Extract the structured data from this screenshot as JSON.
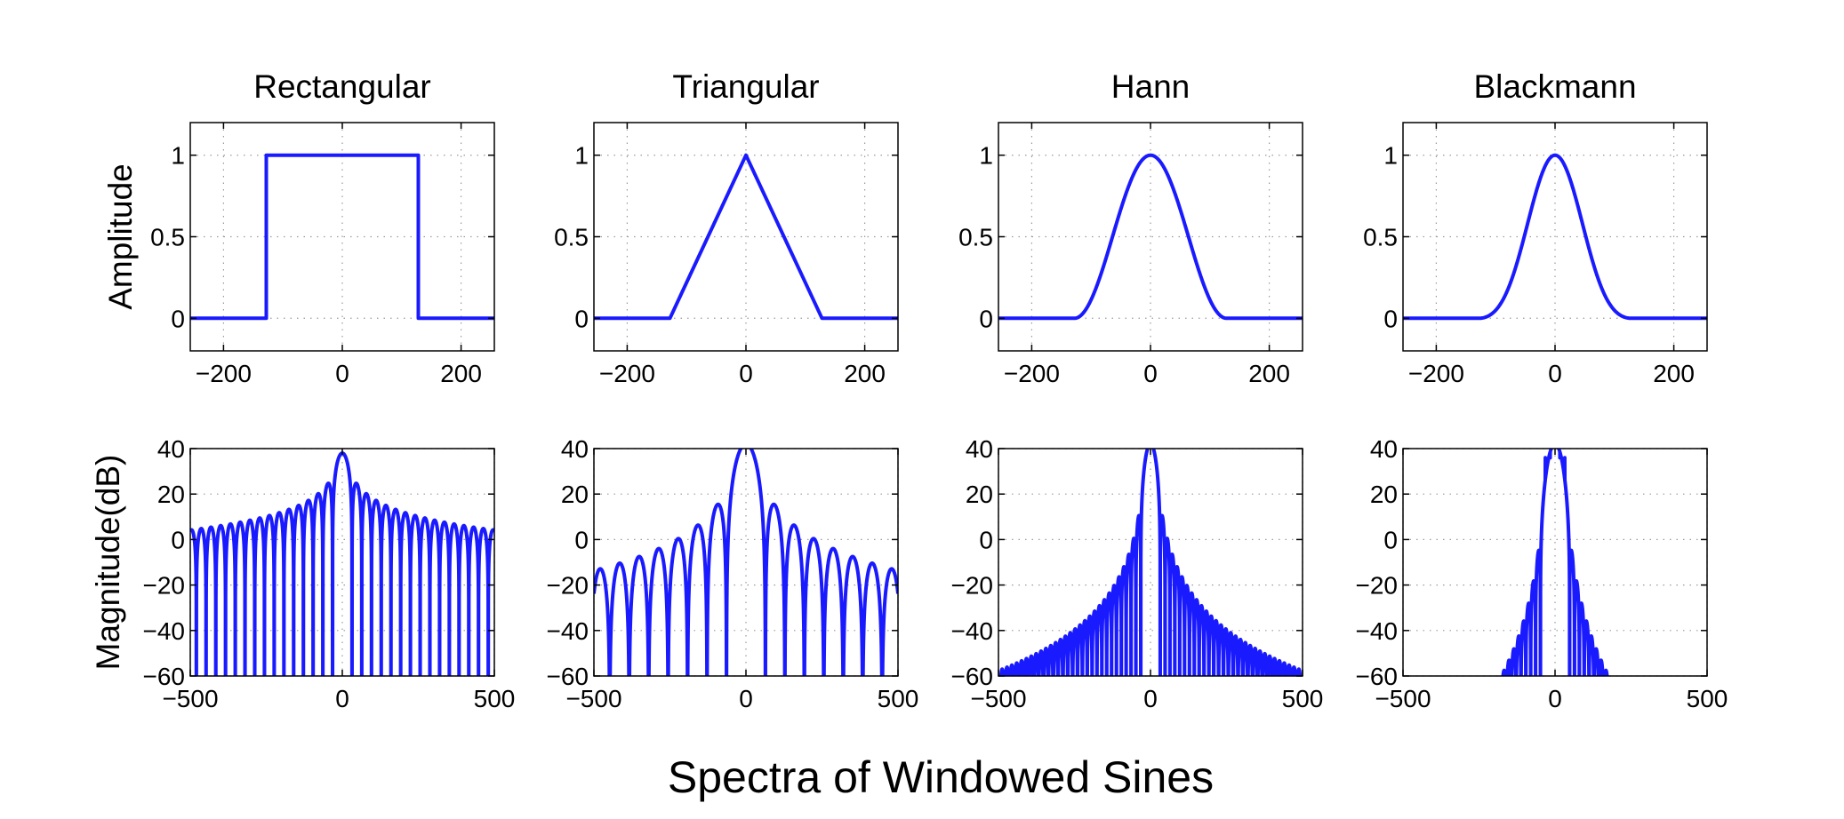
{
  "figure": {
    "caption": "Spectra of Windowed Sines",
    "line_color": "#1a1aff"
  },
  "chart_data": [
    {
      "type": "line",
      "id": "rect-time",
      "title": "Rectangular",
      "ylabel": "Amplitude",
      "xlabel": "",
      "xlim": [
        -256,
        256
      ],
      "ylim": [
        -0.2,
        1.2
      ],
      "xticks": [
        -200,
        0,
        200
      ],
      "xticklabels": [
        "−200",
        "0",
        "200"
      ],
      "yticks": [
        0,
        0.5,
        1
      ],
      "yticklabels": [
        "0",
        "0.5",
        "1"
      ],
      "grid": true,
      "window": "rectangular",
      "kind": "time",
      "half_width": 128
    },
    {
      "type": "line",
      "id": "tri-time",
      "title": "Triangular",
      "ylabel": "",
      "xlabel": "",
      "xlim": [
        -256,
        256
      ],
      "ylim": [
        -0.2,
        1.2
      ],
      "xticks": [
        -200,
        0,
        200
      ],
      "xticklabels": [
        "−200",
        "0",
        "200"
      ],
      "yticks": [
        0,
        0.5,
        1
      ],
      "yticklabels": [
        "0",
        "0.5",
        "1"
      ],
      "grid": true,
      "window": "triangular",
      "kind": "time",
      "half_width": 128
    },
    {
      "type": "line",
      "id": "hann-time",
      "title": "Hann",
      "ylabel": "",
      "xlabel": "",
      "xlim": [
        -256,
        256
      ],
      "ylim": [
        -0.2,
        1.2
      ],
      "xticks": [
        -200,
        0,
        200
      ],
      "xticklabels": [
        "−200",
        "0",
        "200"
      ],
      "yticks": [
        0,
        0.5,
        1
      ],
      "yticklabels": [
        "0",
        "0.5",
        "1"
      ],
      "grid": true,
      "window": "hann",
      "kind": "time",
      "half_width": 128
    },
    {
      "type": "line",
      "id": "black-time",
      "title": "Blackmann",
      "ylabel": "",
      "xlabel": "",
      "xlim": [
        -256,
        256
      ],
      "ylim": [
        -0.2,
        1.2
      ],
      "xticks": [
        -200,
        0,
        200
      ],
      "xticklabels": [
        "−200",
        "0",
        "200"
      ],
      "yticks": [
        0,
        0.5,
        1
      ],
      "yticklabels": [
        "0",
        "0.5",
        "1"
      ],
      "grid": true,
      "window": "blackman",
      "kind": "time",
      "half_width": 128
    },
    {
      "type": "line",
      "id": "rect-freq",
      "title": "",
      "ylabel": "Magnitude(dB)",
      "xlabel": "",
      "xlim": [
        -500,
        500
      ],
      "ylim": [
        -60,
        40
      ],
      "xticks": [
        -500,
        0,
        500
      ],
      "xticklabels": [
        "−500",
        "0",
        "500"
      ],
      "yticks": [
        -60,
        -40,
        -20,
        0,
        20,
        40
      ],
      "yticklabels": [
        "−60",
        "−40",
        "−20",
        "0",
        "20",
        "40"
      ],
      "grid": true,
      "window": "rectangular",
      "kind": "spectrum",
      "peak_db": 38,
      "null_spacing": 32
    },
    {
      "type": "line",
      "id": "tri-freq",
      "title": "",
      "ylabel": "",
      "xlabel": "",
      "xlim": [
        -500,
        500
      ],
      "ylim": [
        -60,
        40
      ],
      "xticks": [
        -500,
        0,
        500
      ],
      "xticklabels": [
        "−500",
        "0",
        "500"
      ],
      "yticks": [
        -60,
        -40,
        -20,
        0,
        20,
        40
      ],
      "yticklabels": [
        "−60",
        "−40",
        "−20",
        "0",
        "20",
        "40"
      ],
      "grid": true,
      "window": "triangular",
      "kind": "spectrum",
      "peak_db": 42,
      "null_spacing": 64
    },
    {
      "type": "line",
      "id": "hann-freq",
      "title": "",
      "ylabel": "",
      "xlabel": "",
      "xlim": [
        -500,
        500
      ],
      "ylim": [
        -60,
        40
      ],
      "xticks": [
        -500,
        0,
        500
      ],
      "xticklabels": [
        "−500",
        "0",
        "500"
      ],
      "yticks": [
        -60,
        -40,
        -20,
        0,
        20,
        40
      ],
      "yticklabels": [
        "−60",
        "−40",
        "−20",
        "0",
        "20",
        "40"
      ],
      "grid": true,
      "window": "hann",
      "kind": "spectrum",
      "peak_db": 42,
      "null_spacing": 16
    },
    {
      "type": "line",
      "id": "black-freq",
      "title": "",
      "ylabel": "",
      "xlabel": "",
      "xlim": [
        -500,
        500
      ],
      "ylim": [
        -60,
        40
      ],
      "xticks": [
        -500,
        0,
        500
      ],
      "xticklabels": [
        "−500",
        "0",
        "500"
      ],
      "yticks": [
        -60,
        -40,
        -20,
        0,
        20,
        40
      ],
      "yticklabels": [
        "−60",
        "−40",
        "−20",
        "0",
        "20",
        "40"
      ],
      "grid": true,
      "window": "blackman",
      "kind": "spectrum",
      "peak_db": 42,
      "null_spacing": 16
    }
  ]
}
